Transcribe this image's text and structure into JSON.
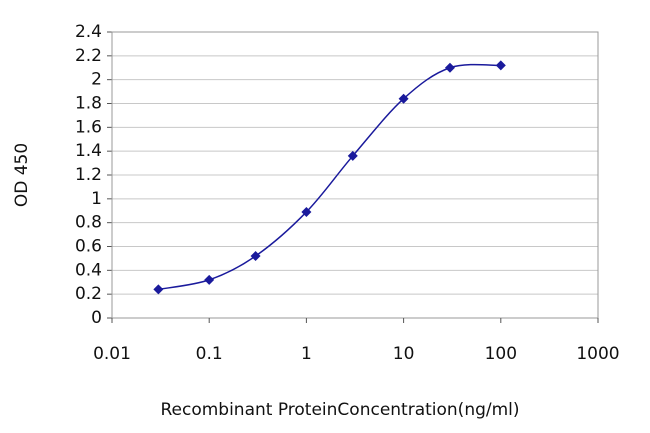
{
  "chart_data": {
    "type": "line",
    "xlabel": "Recombinant ProteinConcentration(ng/ml)",
    "ylabel": "OD 450",
    "xscale": "log",
    "grid": true,
    "x": [
      0.03,
      0.1,
      0.3,
      1,
      3,
      10,
      30,
      100
    ],
    "series": [
      {
        "color": "#1a1a9c",
        "values": [
          0.24,
          0.32,
          0.52,
          0.89,
          1.36,
          1.84,
          2.1,
          2.12
        ]
      }
    ],
    "xlim": [
      0.01,
      1000
    ],
    "xticks": [
      0.01,
      0.1,
      1,
      10,
      100,
      1000
    ],
    "ylim": [
      0,
      2.4
    ],
    "yticks": [
      0,
      0.2,
      0.4,
      0.6,
      0.8,
      1,
      1.2,
      1.4,
      1.6,
      1.8,
      2,
      2.2,
      2.4
    ]
  }
}
